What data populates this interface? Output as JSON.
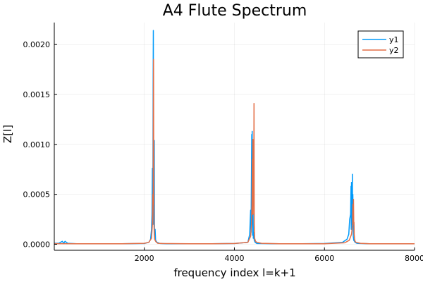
{
  "chart_data": {
    "type": "line",
    "title": "A4 Flute Spectrum",
    "xlabel": "frequency index l=k+1",
    "ylabel": "Z[l]",
    "xlim": [
      1,
      8000
    ],
    "ylim": [
      -6e-05,
      0.00222
    ],
    "x_ticks": [
      2000,
      4000,
      6000,
      8000
    ],
    "x_tick_labels": [
      "2000",
      "4000",
      "6000",
      "8000"
    ],
    "y_ticks": [
      0,
      0.0005,
      0.001,
      0.0015,
      0.002
    ],
    "y_tick_labels": [
      "0.0000",
      "0.0005",
      "0.0010",
      "0.0015",
      "0.0020"
    ],
    "grid": true,
    "legend": {
      "position": "top-right"
    },
    "colors": {
      "y1": "#009AFA",
      "y2": "#E36F47"
    },
    "series": [
      {
        "name": "y1",
        "color": "#009AFA",
        "x": [
          1,
          100,
          180,
          210,
          240,
          300,
          500,
          1000,
          1500,
          2000,
          2100,
          2140,
          2160,
          2170,
          2180,
          2190,
          2195,
          2200,
          2205,
          2210,
          2215,
          2220,
          2225,
          2230,
          2240,
          2250,
          2280,
          2350,
          2500,
          3000,
          3500,
          4000,
          4300,
          4340,
          4360,
          4370,
          4380,
          4385,
          4390,
          4395,
          4400,
          4405,
          4410,
          4415,
          4420,
          4430,
          4440,
          4460,
          4500,
          5000,
          5500,
          6000,
          6400,
          6500,
          6540,
          6560,
          6580,
          6590,
          6595,
          6600,
          6605,
          6610,
          6615,
          6620,
          6625,
          6630,
          6640,
          6650,
          6680,
          6720,
          6800,
          7000,
          7500,
          8000
        ],
        "y": [
          1e-05,
          1e-05,
          3e-05,
          1e-05,
          3e-05,
          1e-05,
          5e-06,
          5e-06,
          5e-06,
          8e-06,
          2e-05,
          5e-05,
          0.00015,
          0.0003,
          0.00076,
          0.0002,
          0.0016,
          0.00214,
          0.0003,
          0.00058,
          0.0002,
          0.00104,
          0.0001,
          6e-05,
          0.00015,
          4e-05,
          2e-05,
          8e-06,
          5e-06,
          5e-06,
          5e-06,
          8e-06,
          2e-05,
          0.0001,
          0.00034,
          0.00012,
          0.00073,
          0.0011,
          0.00025,
          0.00113,
          0.00044,
          9e-05,
          0.00015,
          0.0003,
          6e-05,
          0.00012,
          4e-05,
          2e-05,
          8e-06,
          5e-06,
          5e-06,
          8e-06,
          2e-05,
          5e-05,
          0.0001,
          0.00025,
          0.0003,
          0.00058,
          0.00015,
          0.00062,
          0.00035,
          0.00055,
          0.0002,
          0.0007,
          0.00018,
          0.0005,
          8e-05,
          4e-05,
          2e-05,
          1e-05,
          8e-06,
          5e-06,
          5e-06,
          5e-06
        ]
      },
      {
        "name": "y2",
        "color": "#E36F47",
        "x": [
          1,
          500,
          1000,
          1500,
          2000,
          2100,
          2160,
          2180,
          2190,
          2195,
          2200,
          2205,
          2210,
          2215,
          2220,
          2225,
          2230,
          2240,
          2250,
          2270,
          2300,
          2400,
          3000,
          3500,
          4000,
          4300,
          4360,
          4380,
          4390,
          4400,
          4405,
          4410,
          4415,
          4420,
          4425,
          4430,
          4435,
          4440,
          4450,
          4470,
          4500,
          4600,
          5000,
          6000,
          6450,
          6550,
          6600,
          6620,
          6630,
          6640,
          6645,
          6650,
          6655,
          6660,
          6670,
          6680,
          6700,
          6800,
          7000,
          8000
        ],
        "y": [
          6e-06,
          5e-06,
          5e-06,
          5e-06,
          1e-05,
          2e-05,
          6e-05,
          0.0002,
          0.0005,
          0.0004,
          0.00135,
          0.00185,
          0.0006,
          0.0002,
          0.00012,
          8e-05,
          5e-05,
          4e-05,
          3e-05,
          2e-05,
          1e-05,
          8e-06,
          5e-06,
          5e-06,
          8e-06,
          2e-05,
          8e-05,
          0.0002,
          0.0004,
          0.00085,
          0.0003,
          0.00105,
          0.00045,
          0.00061,
          0.00082,
          0.0003,
          0.00141,
          0.0002,
          6e-05,
          3e-05,
          2e-05,
          1e-05,
          5e-06,
          5e-06,
          1.5e-05,
          4e-05,
          0.0001,
          0.00018,
          0.0004,
          0.0003,
          0.00045,
          0.0002,
          0.00022,
          0.0001,
          5e-05,
          3e-05,
          2e-05,
          1e-05,
          5e-06,
          5e-06
        ]
      }
    ]
  }
}
